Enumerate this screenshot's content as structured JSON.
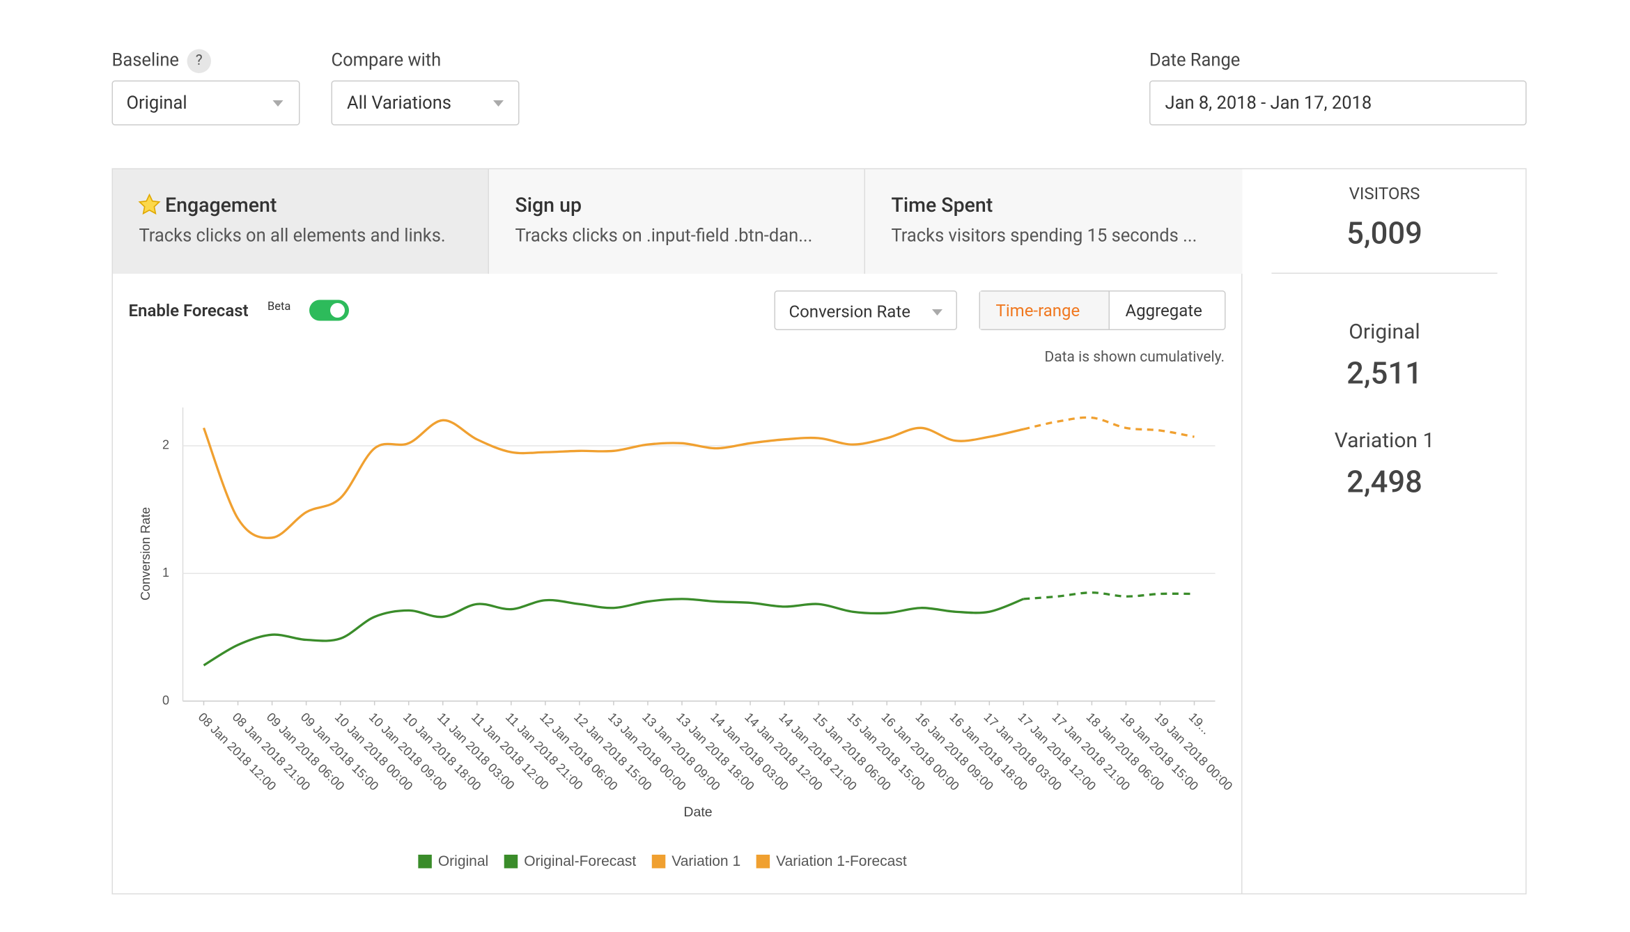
{
  "filters": {
    "baseline": {
      "label": "Baseline",
      "help": "?",
      "value": "Original"
    },
    "compare": {
      "label": "Compare with",
      "value": "All Variations"
    },
    "date_range": {
      "label": "Date Range",
      "value": "Jan 8, 2018 - Jan 17, 2018"
    }
  },
  "tabs": [
    {
      "title": "Engagement",
      "description": "Tracks clicks on all elements and links."
    },
    {
      "title": "Sign up",
      "description": "Tracks clicks on .input-field .btn-dan..."
    },
    {
      "title": "Time Spent",
      "description": "Tracks visitors spending 15 seconds ..."
    }
  ],
  "controls": {
    "forecast": "Enable Forecast",
    "beta": "Beta",
    "metric": "Conversion Rate",
    "time_range": "Time-range",
    "aggregate": "Aggregate",
    "note": "Data is shown cumulatively."
  },
  "stats": {
    "visitors_label": "VISITORS",
    "visitors": "5,009",
    "items": [
      {
        "label": "Original",
        "value": "2,511"
      },
      {
        "label": "Variation 1",
        "value": "2,498"
      }
    ]
  },
  "chart_data": {
    "type": "line",
    "x_label": "Date",
    "y_label": "Conversion Rate",
    "categories": [
      "08 Jan 2018 12:00",
      "08 Jan 2018 21:00",
      "09 Jan 2018 06:00",
      "09 Jan 2018 15:00",
      "10 Jan 2018 00:00",
      "10 Jan 2018 09:00",
      "10 Jan 2018 18:00",
      "11 Jan 2018 03:00",
      "11 Jan 2018 12:00",
      "11 Jan 2018 21:00",
      "12 Jan 2018 06:00",
      "12 Jan 2018 15:00",
      "13 Jan 2018 00:00",
      "13 Jan 2018 09:00",
      "13 Jan 2018 18:00",
      "14 Jan 2018 03:00",
      "14 Jan 2018 12:00",
      "14 Jan 2018 21:00",
      "15 Jan 2018 06:00",
      "15 Jan 2018 15:00",
      "16 Jan 2018 00:00",
      "16 Jan 2018 09:00",
      "16 Jan 2018 18:00",
      "17 Jan 2018 03:00",
      "17 Jan 2018 12:00",
      "17 Jan 2018 21:00",
      "18 Jan 2018 06:00",
      "18 Jan 2018 15:00",
      "19 Jan 2018 00:00",
      "19..."
    ],
    "ylim": [
      0,
      2.3
    ],
    "yticks": [
      0,
      1,
      2
    ],
    "grid": true,
    "series": [
      {
        "name": "Original",
        "color": "#3a8c2a",
        "dashed": false,
        "values": [
          0.28,
          0.44,
          0.52,
          0.48,
          0.49,
          0.66,
          0.71,
          0.66,
          0.76,
          0.72,
          0.79,
          0.76,
          0.73,
          0.78,
          0.8,
          0.78,
          0.77,
          0.74,
          0.76,
          0.7,
          0.69,
          0.73,
          0.7,
          0.7,
          0.8,
          null,
          null,
          null,
          null,
          null
        ]
      },
      {
        "name": "Original-Forecast",
        "color": "#3a8c2a",
        "dashed": true,
        "values": [
          null,
          null,
          null,
          null,
          null,
          null,
          null,
          null,
          null,
          null,
          null,
          null,
          null,
          null,
          null,
          null,
          null,
          null,
          null,
          null,
          null,
          null,
          null,
          null,
          0.8,
          0.82,
          0.85,
          0.82,
          0.84,
          0.84
        ]
      },
      {
        "name": "Variation 1",
        "color": "#f0a030",
        "dashed": false,
        "values": [
          2.14,
          1.43,
          1.28,
          1.48,
          1.59,
          1.98,
          2.02,
          2.2,
          2.05,
          1.95,
          1.95,
          1.96,
          1.96,
          2.01,
          2.02,
          1.98,
          2.02,
          2.05,
          2.06,
          2.01,
          2.06,
          2.14,
          2.04,
          2.07,
          2.13,
          null,
          null,
          null,
          null,
          null
        ]
      },
      {
        "name": "Variation 1-Forecast",
        "color": "#f0a030",
        "dashed": true,
        "values": [
          null,
          null,
          null,
          null,
          null,
          null,
          null,
          null,
          null,
          null,
          null,
          null,
          null,
          null,
          null,
          null,
          null,
          null,
          null,
          null,
          null,
          null,
          null,
          null,
          2.13,
          2.19,
          2.22,
          2.14,
          2.12,
          2.07
        ]
      }
    ]
  }
}
